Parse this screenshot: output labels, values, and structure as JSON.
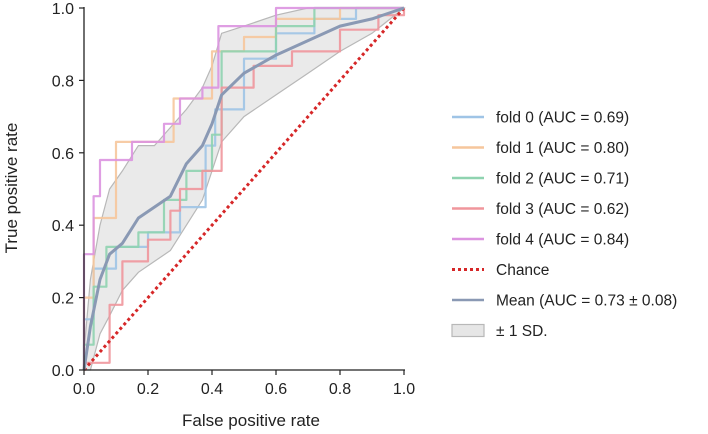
{
  "chart_data": {
    "type": "line",
    "title": "",
    "xlabel": "False positive rate",
    "ylabel": "True positive rate",
    "xlim": [
      0.0,
      1.0
    ],
    "ylim": [
      0.0,
      1.0
    ],
    "xticks": [
      "0.0",
      "0.2",
      "0.4",
      "0.6",
      "0.8",
      "1.0"
    ],
    "yticks": [
      "0.0",
      "0.2",
      "0.4",
      "0.6",
      "0.8",
      "1.0"
    ],
    "grid": false,
    "legend_position": "right",
    "series": [
      {
        "name": "fold 0 (AUC = 0.69)",
        "color": "#9fc4e6",
        "points": [
          [
            0,
            0
          ],
          [
            0,
            0.14
          ],
          [
            0.03,
            0.14
          ],
          [
            0.03,
            0.28
          ],
          [
            0.1,
            0.28
          ],
          [
            0.1,
            0.34
          ],
          [
            0.2,
            0.34
          ],
          [
            0.2,
            0.38
          ],
          [
            0.3,
            0.38
          ],
          [
            0.3,
            0.45
          ],
          [
            0.38,
            0.45
          ],
          [
            0.38,
            0.62
          ],
          [
            0.41,
            0.62
          ],
          [
            0.41,
            0.72
          ],
          [
            0.5,
            0.72
          ],
          [
            0.5,
            0.86
          ],
          [
            0.6,
            0.86
          ],
          [
            0.6,
            0.93
          ],
          [
            0.72,
            0.93
          ],
          [
            0.72,
            0.97
          ],
          [
            0.85,
            0.97
          ],
          [
            0.85,
            1.0
          ],
          [
            1.0,
            1.0
          ]
        ]
      },
      {
        "name": "fold 1 (AUC = 0.80)",
        "color": "#f6c69c",
        "points": [
          [
            0,
            0
          ],
          [
            0,
            0.2
          ],
          [
            0.03,
            0.2
          ],
          [
            0.03,
            0.42
          ],
          [
            0.1,
            0.42
          ],
          [
            0.1,
            0.63
          ],
          [
            0.22,
            0.63
          ],
          [
            0.22,
            0.63
          ],
          [
            0.28,
            0.63
          ],
          [
            0.28,
            0.75
          ],
          [
            0.4,
            0.75
          ],
          [
            0.4,
            0.88
          ],
          [
            0.5,
            0.88
          ],
          [
            0.5,
            0.92
          ],
          [
            0.6,
            0.92
          ],
          [
            0.6,
            0.97
          ],
          [
            0.8,
            0.97
          ],
          [
            0.8,
            1.0
          ],
          [
            1.0,
            1.0
          ]
        ]
      },
      {
        "name": "fold 2 (AUC = 0.71)",
        "color": "#8fd3b0",
        "points": [
          [
            0,
            0
          ],
          [
            0,
            0.07
          ],
          [
            0.03,
            0.07
          ],
          [
            0.03,
            0.23
          ],
          [
            0.07,
            0.23
          ],
          [
            0.07,
            0.34
          ],
          [
            0.17,
            0.34
          ],
          [
            0.17,
            0.38
          ],
          [
            0.25,
            0.38
          ],
          [
            0.25,
            0.47
          ],
          [
            0.32,
            0.47
          ],
          [
            0.32,
            0.55
          ],
          [
            0.4,
            0.55
          ],
          [
            0.4,
            0.65
          ],
          [
            0.43,
            0.65
          ],
          [
            0.43,
            0.88
          ],
          [
            0.5,
            0.88
          ],
          [
            0.5,
            0.88
          ],
          [
            0.6,
            0.88
          ],
          [
            0.6,
            0.95
          ],
          [
            0.72,
            0.95
          ],
          [
            0.72,
            1.0
          ],
          [
            1.0,
            1.0
          ]
        ]
      },
      {
        "name": "fold 3 (AUC = 0.62)",
        "color": "#f0969c",
        "points": [
          [
            0,
            0
          ],
          [
            0,
            0.02
          ],
          [
            0.08,
            0.02
          ],
          [
            0.08,
            0.18
          ],
          [
            0.12,
            0.18
          ],
          [
            0.12,
            0.3
          ],
          [
            0.2,
            0.3
          ],
          [
            0.2,
            0.36
          ],
          [
            0.27,
            0.36
          ],
          [
            0.27,
            0.44
          ],
          [
            0.3,
            0.44
          ],
          [
            0.3,
            0.5
          ],
          [
            0.37,
            0.5
          ],
          [
            0.37,
            0.55
          ],
          [
            0.43,
            0.55
          ],
          [
            0.43,
            0.78
          ],
          [
            0.53,
            0.78
          ],
          [
            0.53,
            0.84
          ],
          [
            0.65,
            0.84
          ],
          [
            0.65,
            0.88
          ],
          [
            0.8,
            0.88
          ],
          [
            0.8,
            0.94
          ],
          [
            0.92,
            0.94
          ],
          [
            0.92,
            0.98
          ],
          [
            1.0,
            0.98
          ],
          [
            1.0,
            1.0
          ]
        ]
      },
      {
        "name": "fold 4 (AUC = 0.84)",
        "color": "#dc94e0",
        "points": [
          [
            0,
            0
          ],
          [
            0,
            0.32
          ],
          [
            0.03,
            0.32
          ],
          [
            0.03,
            0.48
          ],
          [
            0.05,
            0.48
          ],
          [
            0.05,
            0.58
          ],
          [
            0.15,
            0.58
          ],
          [
            0.15,
            0.63
          ],
          [
            0.25,
            0.63
          ],
          [
            0.25,
            0.68
          ],
          [
            0.3,
            0.68
          ],
          [
            0.3,
            0.75
          ],
          [
            0.37,
            0.75
          ],
          [
            0.37,
            0.78
          ],
          [
            0.42,
            0.78
          ],
          [
            0.42,
            0.95
          ],
          [
            0.6,
            0.95
          ],
          [
            0.6,
            1.0
          ],
          [
            1.0,
            1.0
          ]
        ]
      },
      {
        "name": "Chance",
        "color": "#d62728",
        "dashed": true,
        "points": [
          [
            0,
            0
          ],
          [
            1,
            1
          ]
        ]
      },
      {
        "name": "Mean (AUC = 0.73 ± 0.08)",
        "color": "#8a99b4",
        "points": [
          [
            0,
            0
          ],
          [
            0.02,
            0.12
          ],
          [
            0.05,
            0.25
          ],
          [
            0.08,
            0.32
          ],
          [
            0.12,
            0.35
          ],
          [
            0.17,
            0.42
          ],
          [
            0.22,
            0.45
          ],
          [
            0.27,
            0.48
          ],
          [
            0.32,
            0.57
          ],
          [
            0.37,
            0.62
          ],
          [
            0.4,
            0.68
          ],
          [
            0.43,
            0.76
          ],
          [
            0.5,
            0.82
          ],
          [
            0.6,
            0.87
          ],
          [
            0.7,
            0.91
          ],
          [
            0.8,
            0.95
          ],
          [
            0.9,
            0.97
          ],
          [
            1.0,
            1.0
          ]
        ]
      }
    ],
    "band": {
      "name": "± 1 SD.",
      "color": "#e6e6e6",
      "edge_color": "#b8b8b8",
      "upper": [
        [
          0,
          0.05
        ],
        [
          0.02,
          0.25
        ],
        [
          0.05,
          0.4
        ],
        [
          0.08,
          0.5
        ],
        [
          0.12,
          0.55
        ],
        [
          0.17,
          0.62
        ],
        [
          0.22,
          0.62
        ],
        [
          0.27,
          0.67
        ],
        [
          0.32,
          0.72
        ],
        [
          0.37,
          0.78
        ],
        [
          0.4,
          0.84
        ],
        [
          0.43,
          0.93
        ],
        [
          0.5,
          0.95
        ],
        [
          0.6,
          0.98
        ],
        [
          0.7,
          1.0
        ],
        [
          1.0,
          1.0
        ]
      ],
      "lower": [
        [
          0,
          0
        ],
        [
          0.02,
          0.0
        ],
        [
          0.05,
          0.1
        ],
        [
          0.08,
          0.15
        ],
        [
          0.12,
          0.22
        ],
        [
          0.17,
          0.27
        ],
        [
          0.22,
          0.3
        ],
        [
          0.27,
          0.33
        ],
        [
          0.32,
          0.4
        ],
        [
          0.37,
          0.47
        ],
        [
          0.4,
          0.55
        ],
        [
          0.43,
          0.63
        ],
        [
          0.5,
          0.7
        ],
        [
          0.6,
          0.76
        ],
        [
          0.7,
          0.82
        ],
        [
          0.8,
          0.88
        ],
        [
          0.9,
          0.93
        ],
        [
          1.0,
          1.0
        ]
      ]
    }
  }
}
